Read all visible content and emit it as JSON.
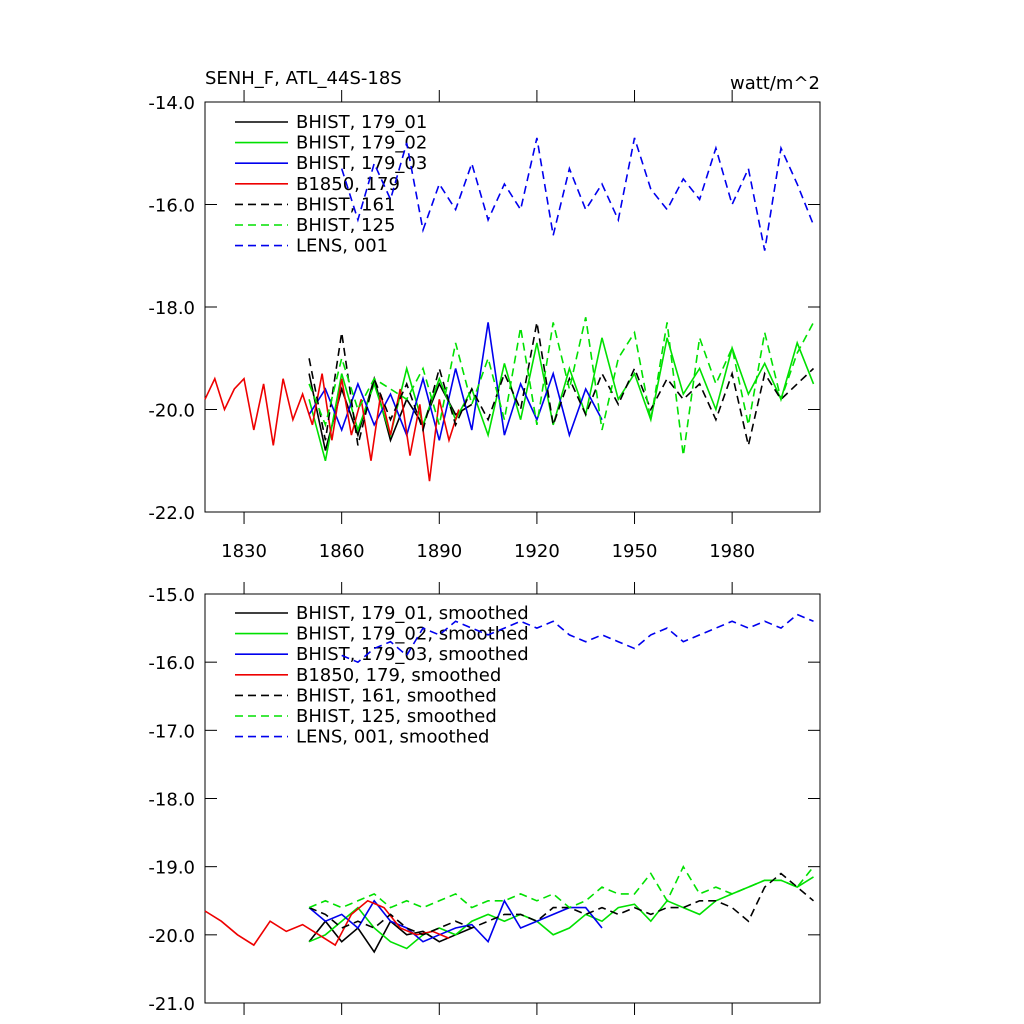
{
  "chart_data": [
    {
      "type": "line",
      "title": "SENH_F, ATL_44S-18S",
      "units": "watt/m^2",
      "xlim": [
        1818,
        2007
      ],
      "xticks": [
        1830,
        1860,
        1890,
        1920,
        1950,
        1980
      ],
      "show_xtick_labels": true,
      "ylim": [
        -22,
        -14
      ],
      "yticks": [
        {
          "value": -14,
          "label": "-14.0"
        },
        {
          "value": -16,
          "label": "-16.0"
        },
        {
          "value": -18,
          "label": "-18.0"
        },
        {
          "value": -20,
          "label": "-20.0"
        },
        {
          "value": -22,
          "label": "-22.0"
        }
      ],
      "series": [
        {
          "name": "BHIST, 179_01",
          "color": "#000000",
          "dash": false,
          "x": [
            1850,
            1855,
            1860,
            1865,
            1870,
            1875,
            1880,
            1885,
            1890,
            1895,
            1900
          ],
          "values": [
            -19.3,
            -20.8,
            -19.6,
            -20.5,
            -19.4,
            -20.6,
            -19.8,
            -20.3,
            -19.5,
            -20.1,
            -19.9
          ]
        },
        {
          "name": "BHIST, 179_02",
          "color": "#00e000",
          "dash": false,
          "x": [
            1850,
            1855,
            1860,
            1865,
            1870,
            1875,
            1880,
            1885,
            1890,
            1895,
            1900,
            1905,
            1910,
            1915,
            1920,
            1925,
            1930,
            1935,
            1940,
            1945,
            1950,
            1955,
            1960,
            1965,
            1970,
            1975,
            1980,
            1985,
            1990,
            1995,
            2000,
            2005
          ],
          "values": [
            -19.8,
            -21.0,
            -19.3,
            -20.4,
            -19.5,
            -20.5,
            -19.2,
            -20.3,
            -19.4,
            -20.2,
            -19.6,
            -20.5,
            -19.1,
            -20.2,
            -18.7,
            -20.3,
            -19.2,
            -20.1,
            -18.6,
            -19.8,
            -19.3,
            -20.2,
            -18.6,
            -19.7,
            -19.2,
            -20.0,
            -18.8,
            -19.7,
            -19.1,
            -19.8,
            -18.7,
            -19.5
          ]
        },
        {
          "name": "BHIST, 179_03",
          "color": "#0000ee",
          "dash": false,
          "x": [
            1850,
            1855,
            1860,
            1865,
            1870,
            1875,
            1880,
            1885,
            1890,
            1895,
            1900,
            1905,
            1910,
            1915,
            1920,
            1925,
            1930,
            1935,
            1940
          ],
          "values": [
            -20.1,
            -19.6,
            -20.4,
            -19.5,
            -20.3,
            -19.7,
            -20.5,
            -19.4,
            -20.6,
            -19.2,
            -20.4,
            -18.3,
            -20.5,
            -19.5,
            -20.2,
            -19.3,
            -20.5,
            -19.6,
            -20.2
          ]
        },
        {
          "name": "B1850, 179",
          "color": "#ee0000",
          "dash": false,
          "x": [
            1818,
            1821,
            1824,
            1827,
            1830,
            1833,
            1836,
            1839,
            1842,
            1845,
            1848,
            1851,
            1854,
            1857,
            1860,
            1863,
            1866,
            1869,
            1872,
            1875,
            1878,
            1881,
            1884,
            1887,
            1890,
            1893,
            1896
          ],
          "values": [
            -19.8,
            -19.4,
            -20.0,
            -19.6,
            -19.4,
            -20.4,
            -19.5,
            -20.7,
            -19.4,
            -20.2,
            -19.7,
            -20.3,
            -19.3,
            -20.6,
            -19.4,
            -20.5,
            -19.8,
            -21.0,
            -19.7,
            -20.5,
            -19.6,
            -20.9,
            -19.9,
            -21.4,
            -19.8,
            -20.6,
            -20.0
          ]
        },
        {
          "name": "BHIST, 161",
          "color": "#000000",
          "dash": true,
          "x": [
            1850,
            1855,
            1860,
            1865,
            1870,
            1875,
            1880,
            1885,
            1890,
            1895,
            1900,
            1905,
            1910,
            1915,
            1920,
            1925,
            1930,
            1935,
            1940,
            1945,
            1950,
            1955,
            1960,
            1965,
            1970,
            1975,
            1980,
            1985,
            1990,
            1995,
            2000,
            2005
          ],
          "values": [
            -19.0,
            -20.6,
            -18.5,
            -20.7,
            -19.4,
            -20.2,
            -19.5,
            -20.4,
            -19.2,
            -20.3,
            -19.6,
            -20.2,
            -19.3,
            -20.0,
            -18.3,
            -20.3,
            -19.4,
            -20.1,
            -19.3,
            -19.9,
            -19.2,
            -20.0,
            -19.4,
            -19.8,
            -19.5,
            -20.2,
            -19.3,
            -20.7,
            -19.3,
            -19.8,
            -19.5,
            -19.2
          ]
        },
        {
          "name": "BHIST, 125",
          "color": "#00e000",
          "dash": true,
          "x": [
            1850,
            1855,
            1860,
            1865,
            1870,
            1875,
            1880,
            1885,
            1890,
            1895,
            1900,
            1905,
            1910,
            1915,
            1920,
            1925,
            1930,
            1935,
            1940,
            1945,
            1950,
            1955,
            1960,
            1965,
            1970,
            1975,
            1980,
            1985,
            1990,
            1995,
            2000,
            2005
          ],
          "values": [
            -19.5,
            -20.3,
            -19.0,
            -20.0,
            -19.4,
            -19.6,
            -19.8,
            -19.2,
            -20.3,
            -18.7,
            -19.9,
            -19.0,
            -20.2,
            -18.4,
            -20.3,
            -18.3,
            -19.6,
            -18.2,
            -20.4,
            -19.0,
            -18.5,
            -20.2,
            -18.3,
            -20.9,
            -18.6,
            -19.5,
            -18.8,
            -20.3,
            -18.5,
            -19.8,
            -18.9,
            -18.3
          ]
        },
        {
          "name": "LENS, 001",
          "color": "#0000ee",
          "dash": true,
          "x": [
            1860,
            1865,
            1870,
            1875,
            1880,
            1885,
            1890,
            1895,
            1900,
            1905,
            1910,
            1915,
            1920,
            1925,
            1930,
            1935,
            1940,
            1945,
            1950,
            1955,
            1960,
            1965,
            1970,
            1975,
            1980,
            1985,
            1990,
            1995,
            2000,
            2005
          ],
          "values": [
            -15.3,
            -16.3,
            -15.2,
            -15.9,
            -14.8,
            -16.5,
            -15.6,
            -16.1,
            -15.2,
            -16.3,
            -15.6,
            -16.1,
            -14.7,
            -16.6,
            -15.3,
            -16.1,
            -15.6,
            -16.3,
            -14.7,
            -15.7,
            -16.1,
            -15.5,
            -15.9,
            -14.9,
            -16.0,
            -15.3,
            -16.9,
            -14.9,
            -15.6,
            -16.4
          ]
        }
      ]
    },
    {
      "type": "line",
      "xlim": [
        1818,
        2007
      ],
      "xticks": [
        1830,
        1860,
        1890,
        1920,
        1950,
        1980
      ],
      "show_xtick_labels": false,
      "ylim": [
        -21,
        -15
      ],
      "yticks": [
        {
          "value": -15,
          "label": "-15.0"
        },
        {
          "value": -16,
          "label": "-16.0"
        },
        {
          "value": -17,
          "label": "-17.0"
        },
        {
          "value": -18,
          "label": "-18.0"
        },
        {
          "value": -19,
          "label": "-19.0"
        },
        {
          "value": -20,
          "label": "-20.0"
        },
        {
          "value": -21,
          "label": "-21.0"
        }
      ],
      "series": [
        {
          "name": "BHIST, 179_01, smoothed",
          "color": "#000000",
          "dash": false,
          "x": [
            1850,
            1855,
            1860,
            1865,
            1870,
            1875,
            1880,
            1885,
            1890,
            1895,
            1900
          ],
          "values": [
            -20.1,
            -19.8,
            -20.1,
            -19.9,
            -20.25,
            -19.8,
            -20.0,
            -19.95,
            -20.1,
            -20.0,
            -19.9
          ]
        },
        {
          "name": "BHIST, 179_02, smoothed",
          "color": "#00e000",
          "dash": false,
          "x": [
            1850,
            1855,
            1860,
            1865,
            1870,
            1875,
            1880,
            1885,
            1890,
            1895,
            1900,
            1905,
            1910,
            1915,
            1920,
            1925,
            1930,
            1935,
            1940,
            1945,
            1950,
            1955,
            1960,
            1965,
            1970,
            1975,
            1980,
            1985,
            1990,
            1995,
            2000,
            2005
          ],
          "values": [
            -20.1,
            -20.0,
            -19.8,
            -19.6,
            -19.9,
            -20.1,
            -20.2,
            -20.0,
            -19.9,
            -20.0,
            -19.8,
            -19.7,
            -19.8,
            -19.7,
            -19.8,
            -20.0,
            -19.9,
            -19.7,
            -19.8,
            -19.6,
            -19.55,
            -19.8,
            -19.5,
            -19.6,
            -19.7,
            -19.5,
            -19.4,
            -19.3,
            -19.2,
            -19.2,
            -19.3,
            -19.15
          ]
        },
        {
          "name": "BHIST, 179_03, smoothed",
          "color": "#0000ee",
          "dash": false,
          "x": [
            1850,
            1855,
            1860,
            1865,
            1870,
            1875,
            1880,
            1885,
            1890,
            1895,
            1900,
            1905,
            1910,
            1915,
            1920,
            1925,
            1930,
            1935,
            1940
          ],
          "values": [
            -19.6,
            -19.8,
            -19.7,
            -19.9,
            -19.5,
            -19.8,
            -19.9,
            -20.1,
            -20.0,
            -19.9,
            -19.85,
            -20.1,
            -19.5,
            -19.9,
            -19.8,
            -19.7,
            -19.6,
            -19.6,
            -19.9
          ]
        },
        {
          "name": "B1850, 179, smoothed",
          "color": "#ee0000",
          "dash": false,
          "x": [
            1818,
            1823,
            1828,
            1833,
            1838,
            1843,
            1848,
            1853,
            1858,
            1863,
            1868,
            1873,
            1878,
            1883,
            1888,
            1893
          ],
          "values": [
            -19.65,
            -19.8,
            -20.0,
            -20.15,
            -19.8,
            -19.95,
            -19.85,
            -20.0,
            -20.15,
            -19.7,
            -19.5,
            -19.6,
            -19.9,
            -20.0,
            -19.95,
            -20.05
          ]
        },
        {
          "name": "BHIST, 161, smoothed",
          "color": "#000000",
          "dash": true,
          "x": [
            1850,
            1855,
            1860,
            1865,
            1870,
            1875,
            1880,
            1885,
            1890,
            1895,
            1900,
            1905,
            1910,
            1915,
            1920,
            1925,
            1930,
            1935,
            1940,
            1945,
            1950,
            1955,
            1960,
            1965,
            1970,
            1975,
            1980,
            1985,
            1990,
            1995,
            2000,
            2005
          ],
          "values": [
            -19.6,
            -19.7,
            -19.9,
            -19.8,
            -19.9,
            -19.7,
            -19.9,
            -20.0,
            -19.9,
            -19.8,
            -19.9,
            -19.8,
            -19.7,
            -19.7,
            -19.8,
            -19.6,
            -19.6,
            -19.7,
            -19.6,
            -19.7,
            -19.6,
            -19.7,
            -19.6,
            -19.6,
            -19.5,
            -19.5,
            -19.6,
            -19.8,
            -19.3,
            -19.1,
            -19.3,
            -19.5
          ]
        },
        {
          "name": "BHIST, 125, smoothed",
          "color": "#00e000",
          "dash": true,
          "x": [
            1850,
            1855,
            1860,
            1865,
            1870,
            1875,
            1880,
            1885,
            1890,
            1895,
            1900,
            1905,
            1910,
            1915,
            1920,
            1925,
            1930,
            1935,
            1940,
            1945,
            1950,
            1955,
            1960,
            1965,
            1970,
            1975,
            1980,
            1985,
            1990,
            1995,
            2000,
            2005
          ],
          "values": [
            -19.6,
            -19.5,
            -19.6,
            -19.5,
            -19.4,
            -19.6,
            -19.5,
            -19.6,
            -19.5,
            -19.4,
            -19.6,
            -19.5,
            -19.5,
            -19.4,
            -19.5,
            -19.4,
            -19.6,
            -19.5,
            -19.3,
            -19.4,
            -19.4,
            -19.1,
            -19.5,
            -19.0,
            -19.4,
            -19.3,
            -19.4,
            -19.3,
            -19.2,
            -19.2,
            -19.3,
            -19.0
          ]
        },
        {
          "name": "LENS, 001, smoothed",
          "color": "#0000ee",
          "dash": true,
          "x": [
            1860,
            1865,
            1870,
            1875,
            1880,
            1885,
            1890,
            1895,
            1900,
            1905,
            1910,
            1915,
            1920,
            1925,
            1930,
            1935,
            1940,
            1945,
            1950,
            1955,
            1960,
            1965,
            1970,
            1975,
            1980,
            1985,
            1990,
            1995,
            2000,
            2005
          ],
          "values": [
            -15.9,
            -16.0,
            -15.8,
            -15.7,
            -15.9,
            -15.5,
            -15.6,
            -15.4,
            -15.5,
            -15.6,
            -15.5,
            -15.4,
            -15.5,
            -15.4,
            -15.6,
            -15.7,
            -15.6,
            -15.7,
            -15.8,
            -15.6,
            -15.5,
            -15.7,
            -15.6,
            -15.5,
            -15.4,
            -15.5,
            -15.4,
            -15.5,
            -15.3,
            -15.4
          ]
        }
      ]
    }
  ]
}
